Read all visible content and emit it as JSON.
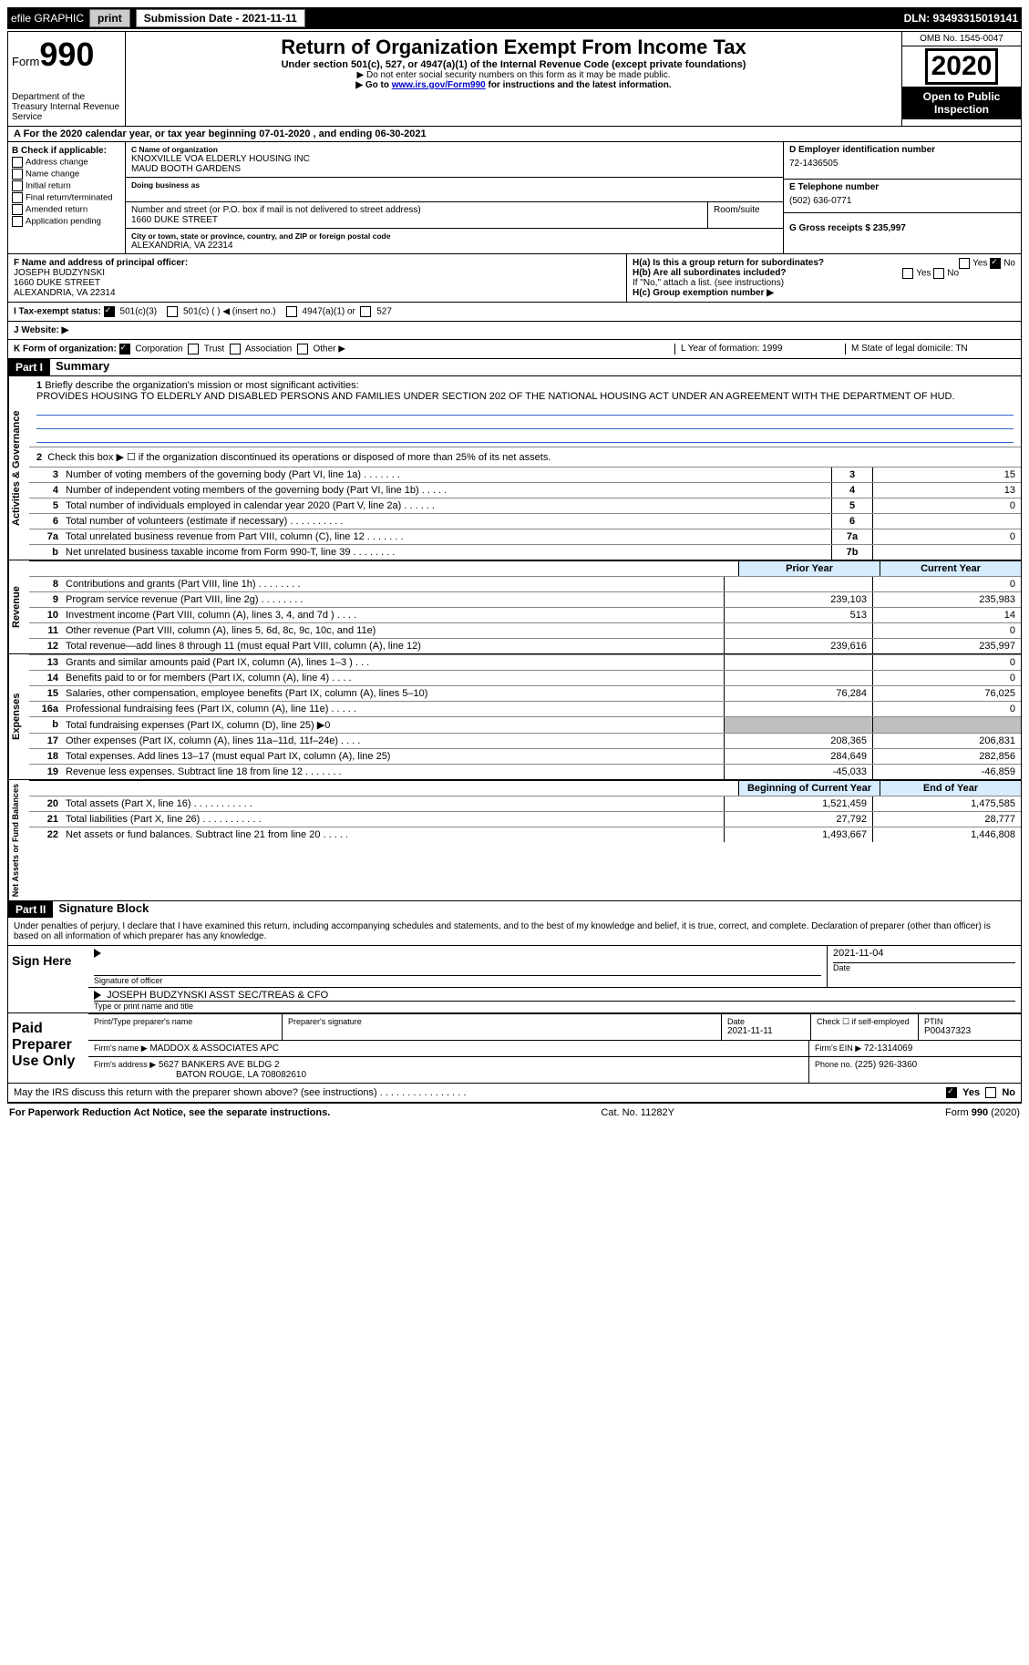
{
  "colors": {
    "black": "#000000",
    "white": "#ffffff",
    "lightblue_header": "#d6ecff",
    "link_blue": "#0000cc",
    "rule_blue": "#3366cc",
    "gray_shade": "#bfbfbf",
    "button_gray": "#cccccc"
  },
  "topbar": {
    "efile": "efile GRAPHIC",
    "print": "print",
    "submission_label": "Submission Date - 2021-11-11",
    "dln": "DLN: 93493315019141"
  },
  "header": {
    "form_label": "Form",
    "form_number": "990",
    "dept": "Department of the Treasury Internal Revenue Service",
    "title": "Return of Organization Exempt From Income Tax",
    "subtitle": "Under section 501(c), 527, or 4947(a)(1) of the Internal Revenue Code (except private foundations)",
    "note1": "▶ Do not enter social security numbers on this form as it may be made public.",
    "note2_pre": "▶ Go to ",
    "note2_link": "www.irs.gov/Form990",
    "note2_post": " for instructions and the latest information.",
    "omb": "OMB No. 1545-0047",
    "year": "2020",
    "open_public": "Open to Public Inspection"
  },
  "row_a": "A For the 2020 calendar year, or tax year beginning 07-01-2020    , and ending 06-30-2021",
  "box_b": {
    "label": "B Check if applicable:",
    "items": [
      "Address change",
      "Name change",
      "Initial return",
      "Final return/terminated",
      "Amended return",
      "Application pending"
    ]
  },
  "box_c": {
    "name_label": "C Name of organization",
    "name_line1": "KNOXVILLE VOA ELDERLY HOUSING INC",
    "name_line2": "MAUD BOOTH GARDENS",
    "dba_label": "Doing business as",
    "street_label": "Number and street (or P.O. box if mail is not delivered to street address)",
    "street": "1660 DUKE STREET",
    "room_label": "Room/suite",
    "city_label": "City or town, state or province, country, and ZIP or foreign postal code",
    "city": "ALEXANDRIA, VA  22314"
  },
  "box_de": {
    "d_label": "D Employer identification number",
    "d_value": "72-1436505",
    "e_label": "E Telephone number",
    "e_value": "(502) 636-0771",
    "g_label": "G Gross receipts $ 235,997"
  },
  "box_f": {
    "label": "F Name and address of principal officer:",
    "line1": "JOSEPH BUDZYNSKI",
    "line2": "1660 DUKE STREET",
    "line3": "ALEXANDRIA, VA  22314"
  },
  "box_h": {
    "ha": "H(a)  Is this a group return for subordinates?",
    "ha_yes": "Yes",
    "ha_no": "No",
    "hb": "H(b)  Are all subordinates included?",
    "hb_yes": "Yes",
    "hb_no": "No",
    "hb_note": "If \"No,\" attach a list. (see instructions)",
    "hc": "H(c)  Group exemption number ▶"
  },
  "row_i": {
    "label": "I  Tax-exempt status:",
    "opt1": "501(c)(3)",
    "opt2": "501(c) (   ) ◀ (insert no.)",
    "opt3": "4947(a)(1) or",
    "opt4": "527"
  },
  "row_j": "J  Website: ▶",
  "row_k": {
    "label": "K Form of organization:",
    "opts": [
      "Corporation",
      "Trust",
      "Association",
      "Other ▶"
    ],
    "l": "L Year of formation: 1999",
    "m": "M State of legal domicile: TN"
  },
  "part1": {
    "tag": "Part I",
    "title": "Summary",
    "q1_label": "1",
    "q1_text": "Briefly describe the organization's mission or most significant activities:",
    "mission": "PROVIDES HOUSING TO ELDERLY AND DISABLED PERSONS AND FAMILIES UNDER SECTION 202 OF THE NATIONAL HOUSING ACT UNDER AN AGREEMENT WITH THE DEPARTMENT OF HUD.",
    "q2": "Check this box ▶ ☐ if the organization discontinued its operations or disposed of more than 25% of its net assets.",
    "side_gov": "Activities & Governance",
    "side_rev": "Revenue",
    "side_exp": "Expenses",
    "side_net": "Net Assets or Fund Balances",
    "lines_gov": [
      {
        "n": "3",
        "d": "Number of voting members of the governing body (Part VI, line 1a)  .    .    .    .    .    .    .",
        "c": "3",
        "v": "15"
      },
      {
        "n": "4",
        "d": "Number of independent voting members of the governing body (Part VI, line 1b)  .    .    .    .    .",
        "c": "4",
        "v": "13"
      },
      {
        "n": "5",
        "d": "Total number of individuals employed in calendar year 2020 (Part V, line 2a)  .    .    .    .    .    .",
        "c": "5",
        "v": "0"
      },
      {
        "n": "6",
        "d": "Total number of volunteers (estimate if necessary)  .    .    .    .    .    .    .    .    .    .",
        "c": "6",
        "v": ""
      },
      {
        "n": "7a",
        "d": "Total unrelated business revenue from Part VIII, column (C), line 12  .    .    .    .    .    .    .",
        "c": "7a",
        "v": "0"
      },
      {
        "n": "b",
        "d": "Net unrelated business taxable income from Form 990-T, line 39  .    .    .    .    .    .    .    .",
        "c": "7b",
        "v": ""
      }
    ],
    "prior_label": "Prior Year",
    "curr_label": "Current Year",
    "lines_rev": [
      {
        "n": "8",
        "d": "Contributions and grants (Part VIII, line 1h)  .    .    .    .    .    .    .    .",
        "p": "",
        "c": "0"
      },
      {
        "n": "9",
        "d": "Program service revenue (Part VIII, line 2g)  .    .    .    .    .    .    .    .",
        "p": "239,103",
        "c": "235,983"
      },
      {
        "n": "10",
        "d": "Investment income (Part VIII, column (A), lines 3, 4, and 7d )  .    .    .    .",
        "p": "513",
        "c": "14"
      },
      {
        "n": "11",
        "d": "Other revenue (Part VIII, column (A), lines 5, 6d, 8c, 9c, 10c, and 11e)",
        "p": "",
        "c": "0"
      },
      {
        "n": "12",
        "d": "Total revenue—add lines 8 through 11 (must equal Part VIII, column (A), line 12)",
        "p": "239,616",
        "c": "235,997"
      }
    ],
    "lines_exp": [
      {
        "n": "13",
        "d": "Grants and similar amounts paid (Part IX, column (A), lines 1–3 )  .    .    .",
        "p": "",
        "c": "0"
      },
      {
        "n": "14",
        "d": "Benefits paid to or for members (Part IX, column (A), line 4)  .    .    .    .",
        "p": "",
        "c": "0"
      },
      {
        "n": "15",
        "d": "Salaries, other compensation, employee benefits (Part IX, column (A), lines 5–10)",
        "p": "76,284",
        "c": "76,025"
      },
      {
        "n": "16a",
        "d": "Professional fundraising fees (Part IX, column (A), line 11e)  .    .    .    .    .",
        "p": "",
        "c": "0"
      },
      {
        "n": "b",
        "d": "Total fundraising expenses (Part IX, column (D), line 25) ▶0",
        "p": "SHADE",
        "c": "SHADE"
      },
      {
        "n": "17",
        "d": "Other expenses (Part IX, column (A), lines 11a–11d, 11f–24e)  .    .    .    .",
        "p": "208,365",
        "c": "206,831"
      },
      {
        "n": "18",
        "d": "Total expenses. Add lines 13–17 (must equal Part IX, column (A), line 25)",
        "p": "284,649",
        "c": "282,856"
      },
      {
        "n": "19",
        "d": "Revenue less expenses. Subtract line 18 from line 12  .    .    .    .    .    .    .",
        "p": "-45,033",
        "c": "-46,859"
      }
    ],
    "boy_label": "Beginning of Current Year",
    "eoy_label": "End of Year",
    "lines_net": [
      {
        "n": "20",
        "d": "Total assets (Part X, line 16)  .    .    .    .    .    .    .    .    .    .    .",
        "p": "1,521,459",
        "c": "1,475,585"
      },
      {
        "n": "21",
        "d": "Total liabilities (Part X, line 26)  .    .    .    .    .    .    .    .    .    .    .",
        "p": "27,792",
        "c": "28,777"
      },
      {
        "n": "22",
        "d": "Net assets or fund balances. Subtract line 21 from line 20  .    .    .    .    .",
        "p": "1,493,667",
        "c": "1,446,808"
      }
    ]
  },
  "part2": {
    "tag": "Part II",
    "title": "Signature Block",
    "declaration": "Under penalties of perjury, I declare that I have examined this return, including accompanying schedules and statements, and to the best of my knowledge and belief, it is true, correct, and complete. Declaration of preparer (other than officer) is based on all information of which preparer has any knowledge.",
    "sign_here": "Sign Here",
    "sig_officer": "Signature of officer",
    "sig_date": "2021-11-04",
    "date_label": "Date",
    "officer_name": "JOSEPH BUDZYNSKI  ASST SEC/TREAS & CFO",
    "officer_name_label": "Type or print name and title",
    "paid_label": "Paid Preparer Use Only",
    "preparer_name_label": "Print/Type preparer's name",
    "preparer_sig_label": "Preparer's signature",
    "prep_date_label": "Date",
    "prep_date": "2021-11-11",
    "selfemp_label": "Check ☐ if self-employed",
    "ptin_label": "PTIN",
    "ptin": "P00437323",
    "firm_name_label": "Firm's name    ▶",
    "firm_name": "MADDOX & ASSOCIATES APC",
    "firm_ein_label": "Firm's EIN ▶",
    "firm_ein": "72-1314069",
    "firm_addr_label": "Firm's address ▶",
    "firm_addr1": "5627 BANKERS AVE BLDG 2",
    "firm_addr2": "BATON ROUGE, LA  708082610",
    "firm_phone_label": "Phone no.",
    "firm_phone": "(225) 926-3360",
    "discuss": "May the IRS discuss this return with the preparer shown above? (see instructions)  .    .    .    .    .    .    .    .    .    .    .    .    .    .    .    .",
    "discuss_yes": "Yes",
    "discuss_no": "No"
  },
  "footer": {
    "left": "For Paperwork Reduction Act Notice, see the separate instructions.",
    "mid": "Cat. No. 11282Y",
    "right": "Form 990 (2020)"
  }
}
